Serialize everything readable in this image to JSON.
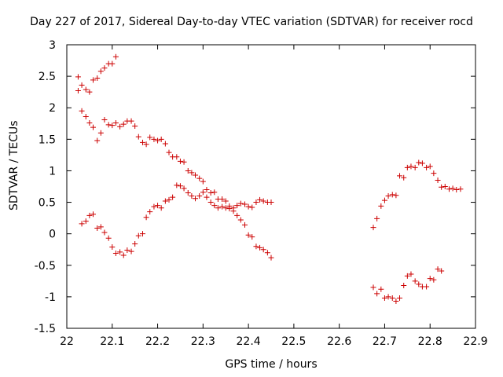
{
  "chart_data": {
    "type": "scatter",
    "title": "Day 227 of 2017, Sidereal Day-to-day VTEC variation (SDTVAR) for receiver rocd",
    "xlabel": "GPS time / hours",
    "ylabel": "SDTVAR / TECUs",
    "xlim": [
      22,
      22.9
    ],
    "ylim": [
      -1.5,
      3
    ],
    "xticks": [
      "22",
      "22.1",
      "22.2",
      "22.3",
      "22.4",
      "22.5",
      "22.6",
      "22.7",
      "22.8",
      "22.9"
    ],
    "yticks": [
      "3",
      "2.5",
      "2",
      "1.5",
      "1",
      "0.5",
      "0",
      "-0.5",
      "-1",
      "-1.5"
    ],
    "grid": false,
    "legend": "none",
    "marker": "+",
    "color": "#cc0000",
    "series": [
      {
        "name": "SDTVAR",
        "points": [
          [
            22.025,
            2.49
          ],
          [
            22.025,
            2.27
          ],
          [
            22.033,
            2.36
          ],
          [
            22.042,
            2.29
          ],
          [
            22.05,
            2.25
          ],
          [
            22.058,
            2.44
          ],
          [
            22.067,
            2.47
          ],
          [
            22.075,
            2.58
          ],
          [
            22.083,
            2.63
          ],
          [
            22.092,
            2.7
          ],
          [
            22.1,
            2.7
          ],
          [
            22.108,
            2.81
          ],
          [
            22.033,
            1.95
          ],
          [
            22.042,
            1.86
          ],
          [
            22.05,
            1.76
          ],
          [
            22.058,
            1.69
          ],
          [
            22.067,
            1.48
          ],
          [
            22.075,
            1.6
          ],
          [
            22.083,
            1.81
          ],
          [
            22.092,
            1.73
          ],
          [
            22.1,
            1.72
          ],
          [
            22.108,
            1.76
          ],
          [
            22.117,
            1.7
          ],
          [
            22.125,
            1.74
          ],
          [
            22.133,
            1.79
          ],
          [
            22.142,
            1.79
          ],
          [
            22.15,
            1.71
          ],
          [
            22.158,
            1.54
          ],
          [
            22.167,
            1.45
          ],
          [
            22.175,
            1.42
          ],
          [
            22.183,
            1.53
          ],
          [
            22.192,
            1.5
          ],
          [
            22.2,
            1.48
          ],
          [
            22.208,
            1.5
          ],
          [
            22.217,
            1.43
          ],
          [
            22.225,
            1.29
          ],
          [
            22.233,
            1.22
          ],
          [
            22.242,
            1.22
          ],
          [
            22.25,
            1.15
          ],
          [
            22.258,
            1.14
          ],
          [
            22.267,
            1.0
          ],
          [
            22.275,
            0.97
          ],
          [
            22.283,
            0.93
          ],
          [
            22.292,
            0.88
          ],
          [
            22.3,
            0.83
          ],
          [
            22.308,
            0.7
          ],
          [
            22.317,
            0.65
          ],
          [
            22.325,
            0.66
          ],
          [
            22.333,
            0.55
          ],
          [
            22.342,
            0.55
          ],
          [
            22.35,
            0.52
          ],
          [
            22.358,
            0.44
          ],
          [
            22.367,
            0.36
          ],
          [
            22.375,
            0.29
          ],
          [
            22.383,
            0.22
          ],
          [
            22.392,
            0.14
          ],
          [
            22.4,
            -0.02
          ],
          [
            22.408,
            -0.05
          ],
          [
            22.417,
            -0.2
          ],
          [
            22.425,
            -0.22
          ],
          [
            22.433,
            -0.25
          ],
          [
            22.442,
            -0.3
          ],
          [
            22.45,
            -0.38
          ],
          [
            22.033,
            0.16
          ],
          [
            22.042,
            0.2
          ],
          [
            22.05,
            0.29
          ],
          [
            22.058,
            0.31
          ],
          [
            22.067,
            0.09
          ],
          [
            22.075,
            0.11
          ],
          [
            22.083,
            0.02
          ],
          [
            22.092,
            -0.07
          ],
          [
            22.1,
            -0.21
          ],
          [
            22.108,
            -0.31
          ],
          [
            22.117,
            -0.29
          ],
          [
            22.125,
            -0.34
          ],
          [
            22.133,
            -0.26
          ],
          [
            22.142,
            -0.28
          ],
          [
            22.15,
            -0.16
          ],
          [
            22.158,
            -0.03
          ],
          [
            22.167,
            0.0
          ],
          [
            22.175,
            0.26
          ],
          [
            22.183,
            0.35
          ],
          [
            22.192,
            0.43
          ],
          [
            22.2,
            0.45
          ],
          [
            22.208,
            0.41
          ],
          [
            22.217,
            0.52
          ],
          [
            22.225,
            0.54
          ],
          [
            22.233,
            0.58
          ],
          [
            22.242,
            0.77
          ],
          [
            22.25,
            0.76
          ],
          [
            22.258,
            0.72
          ],
          [
            22.267,
            0.65
          ],
          [
            22.275,
            0.6
          ],
          [
            22.283,
            0.56
          ],
          [
            22.292,
            0.6
          ],
          [
            22.3,
            0.66
          ],
          [
            22.308,
            0.58
          ],
          [
            22.317,
            0.5
          ],
          [
            22.325,
            0.45
          ],
          [
            22.333,
            0.41
          ],
          [
            22.342,
            0.43
          ],
          [
            22.35,
            0.41
          ],
          [
            22.358,
            0.4
          ],
          [
            22.367,
            0.41
          ],
          [
            22.375,
            0.45
          ],
          [
            22.383,
            0.48
          ],
          [
            22.392,
            0.47
          ],
          [
            22.4,
            0.43
          ],
          [
            22.408,
            0.42
          ],
          [
            22.417,
            0.5
          ],
          [
            22.425,
            0.54
          ],
          [
            22.433,
            0.52
          ],
          [
            22.442,
            0.5
          ],
          [
            22.45,
            0.5
          ],
          [
            22.675,
            0.1
          ],
          [
            22.683,
            0.24
          ],
          [
            22.692,
            0.44
          ],
          [
            22.7,
            0.53
          ],
          [
            22.708,
            0.6
          ],
          [
            22.717,
            0.62
          ],
          [
            22.725,
            0.61
          ],
          [
            22.733,
            0.92
          ],
          [
            22.742,
            0.89
          ],
          [
            22.75,
            1.05
          ],
          [
            22.758,
            1.07
          ],
          [
            22.767,
            1.05
          ],
          [
            22.775,
            1.13
          ],
          [
            22.783,
            1.12
          ],
          [
            22.792,
            1.05
          ],
          [
            22.8,
            1.07
          ],
          [
            22.808,
            0.96
          ],
          [
            22.817,
            0.85
          ],
          [
            22.825,
            0.74
          ],
          [
            22.833,
            0.75
          ],
          [
            22.842,
            0.71
          ],
          [
            22.85,
            0.72
          ],
          [
            22.858,
            0.7
          ],
          [
            22.867,
            0.71
          ],
          [
            22.675,
            -0.85
          ],
          [
            22.683,
            -0.95
          ],
          [
            22.692,
            -0.88
          ],
          [
            22.7,
            -1.02
          ],
          [
            22.708,
            -1.0
          ],
          [
            22.717,
            -1.02
          ],
          [
            22.725,
            -1.07
          ],
          [
            22.733,
            -1.02
          ],
          [
            22.742,
            -0.82
          ],
          [
            22.75,
            -0.67
          ],
          [
            22.758,
            -0.64
          ],
          [
            22.767,
            -0.75
          ],
          [
            22.775,
            -0.8
          ],
          [
            22.783,
            -0.84
          ],
          [
            22.792,
            -0.84
          ],
          [
            22.8,
            -0.71
          ],
          [
            22.808,
            -0.73
          ],
          [
            22.817,
            -0.56
          ],
          [
            22.825,
            -0.59
          ]
        ]
      }
    ]
  }
}
